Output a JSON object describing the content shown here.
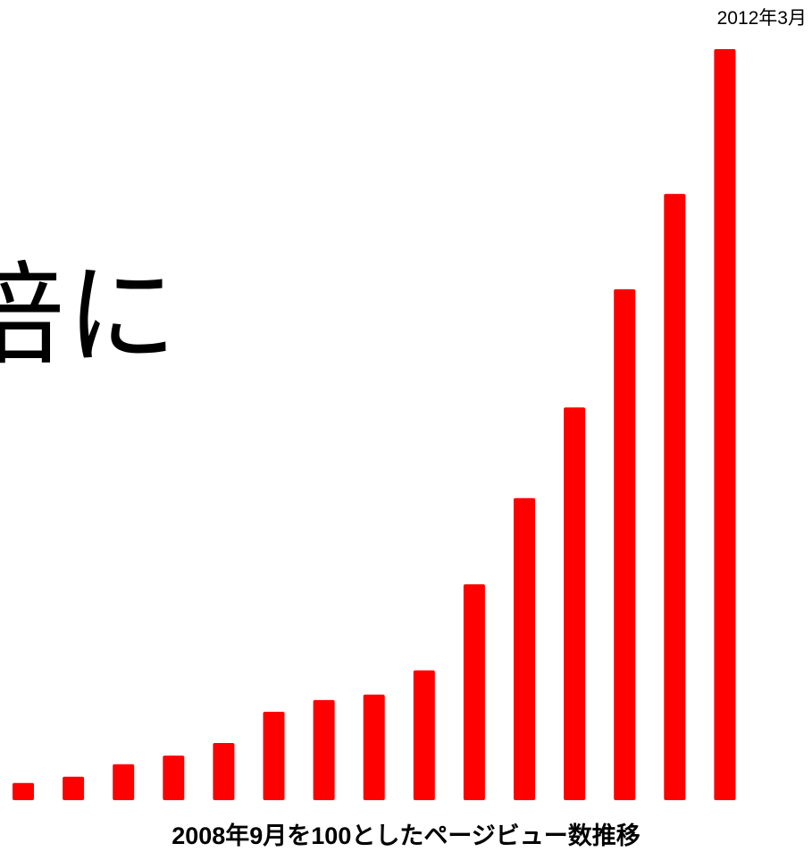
{
  "headline": "倍に",
  "end_label": "2012年3月",
  "caption": "2008年9月を100としたページビュー数推移",
  "colors": {
    "bar": "#ff0000",
    "text": "#000000",
    "background": "#ffffff"
  },
  "chart_data": {
    "type": "bar",
    "title": "",
    "caption": "2008年9月を100としたページビュー数推移",
    "end_label": "2012年3月",
    "categories": [
      "",
      "",
      "",
      "",
      "",
      "",
      "",
      "",
      "",
      "",
      "",
      "",
      "",
      "",
      ""
    ],
    "values": [
      22,
      30,
      46,
      57,
      73,
      113,
      128,
      135,
      166,
      276,
      386,
      502,
      653,
      775,
      960
    ],
    "xlabel": "",
    "ylabel": "",
    "ylim": [
      0,
      960
    ],
    "grid": false,
    "legend": "none"
  }
}
